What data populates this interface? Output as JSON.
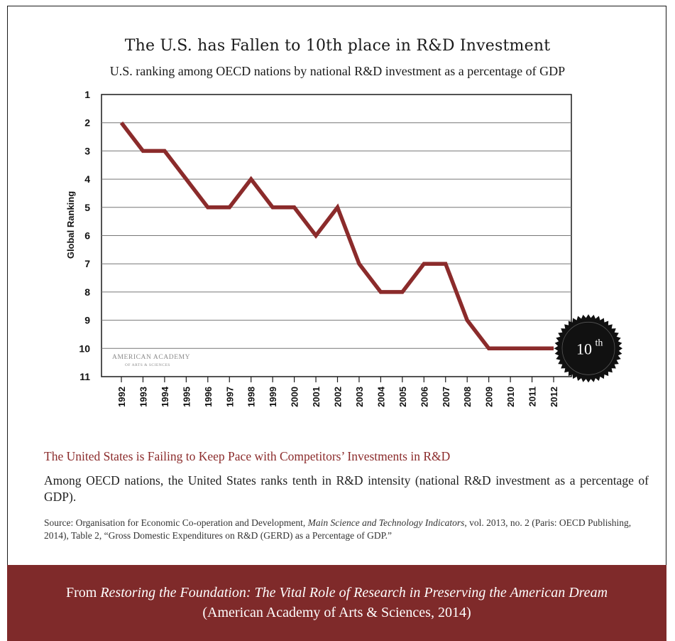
{
  "chart_data": {
    "type": "line",
    "title": "The U.S. has Fallen to 10th place in R&D Investment",
    "subtitle": "U.S. ranking among OECD nations by national R&D investment as a percentage of GDP",
    "ylabel": "Global Ranking",
    "xlabel": "",
    "y_inverted": true,
    "ylim": [
      1,
      11
    ],
    "yticks": [
      1,
      2,
      3,
      4,
      5,
      6,
      7,
      8,
      9,
      10,
      11
    ],
    "categories": [
      "1992",
      "1993",
      "1994",
      "1995",
      "1996",
      "1997",
      "1998",
      "1999",
      "2000",
      "2001",
      "2002",
      "2003",
      "2004",
      "2005",
      "2006",
      "2007",
      "2008",
      "2009",
      "2010",
      "2011",
      "2012"
    ],
    "series": [
      {
        "values": [
          2,
          3,
          3,
          4,
          5,
          5,
          4,
          5,
          5,
          6,
          5,
          7,
          8,
          8,
          7,
          7,
          9,
          10,
          10,
          10,
          10
        ]
      }
    ],
    "grid": "horizontal",
    "line_color": "#8b2b2b",
    "badge": {
      "text": "10",
      "sup": "th"
    },
    "watermark": {
      "line1": "AMERICAN ACADEMY",
      "line2": "OF ARTS & SCIENCES"
    }
  },
  "text": {
    "heading": "The United States is Failing to Keep Pace with Competitors’ Investments in R&D",
    "body": "Among OECD nations, the United States ranks tenth in R&D intensity (national R&D investment as a percentage of GDP).",
    "source_prefix": "Source: Organisation for Economic Co-operation and Development, ",
    "source_italic": "Main Science and Technology Indicators",
    "source_suffix": ", vol. 2013, no. 2 (Paris: OECD Publishing, 2014), Table 2, “Gross Domestic Expenditures on R&D (GERD) as a Percentage of GDP.”",
    "banner_from": "From ",
    "banner_italic": "Restoring the Foundation: The Vital Role of Research in Preserving the American Dream",
    "banner_line2": "(American Academy of Arts & Sciences, 2014)"
  },
  "colors": {
    "accent": "#8b2b2b",
    "banner_bg": "#7f2a2a",
    "badge": "#111111"
  }
}
